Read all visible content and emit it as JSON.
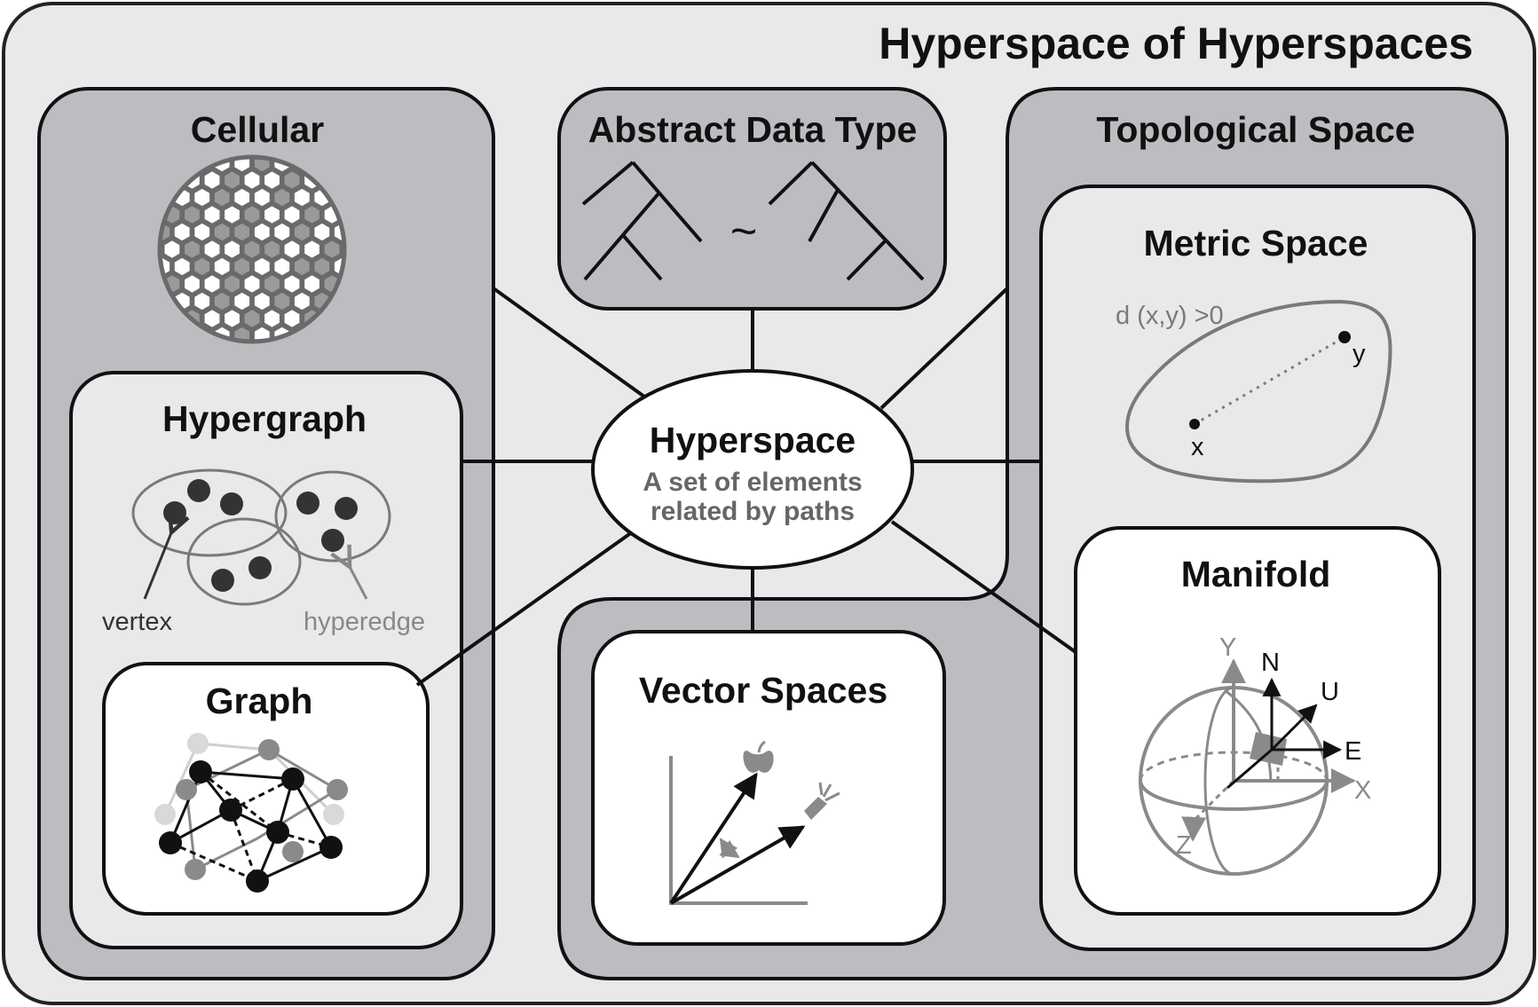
{
  "title": "Hyperspace of Hyperspaces",
  "center": {
    "title": "Hyperspace",
    "subtitle_line1": "A set of elements",
    "subtitle_line2": "related by paths"
  },
  "boxes": {
    "cellular": "Cellular",
    "abstract_data_type": "Abstract Data Type",
    "topological_space": "Topological Space",
    "metric_space": "Metric Space",
    "manifold": "Manifold",
    "hypergraph": "Hypergraph",
    "graph": "Graph",
    "vector_spaces": "Vector Spaces"
  },
  "adt": {
    "equivalence_symbol": "~"
  },
  "metric": {
    "formula": "d (x,y) >0",
    "point_x": "x",
    "point_y": "y"
  },
  "hypergraph": {
    "vertex_label": "vertex",
    "hyperedge_label": "hyperedge"
  },
  "manifold": {
    "axis_y": "Y",
    "axis_x": "X",
    "axis_z": "Z",
    "n": "N",
    "u": "U",
    "e": "E"
  },
  "colors": {
    "outer_bg": "#e8e9eb",
    "mid_gray": "#bcbdc0",
    "dark_gray": "#8a8a8a",
    "white": "#ffffff",
    "ink": "#111111",
    "label_gray": "#7a7a7a"
  }
}
